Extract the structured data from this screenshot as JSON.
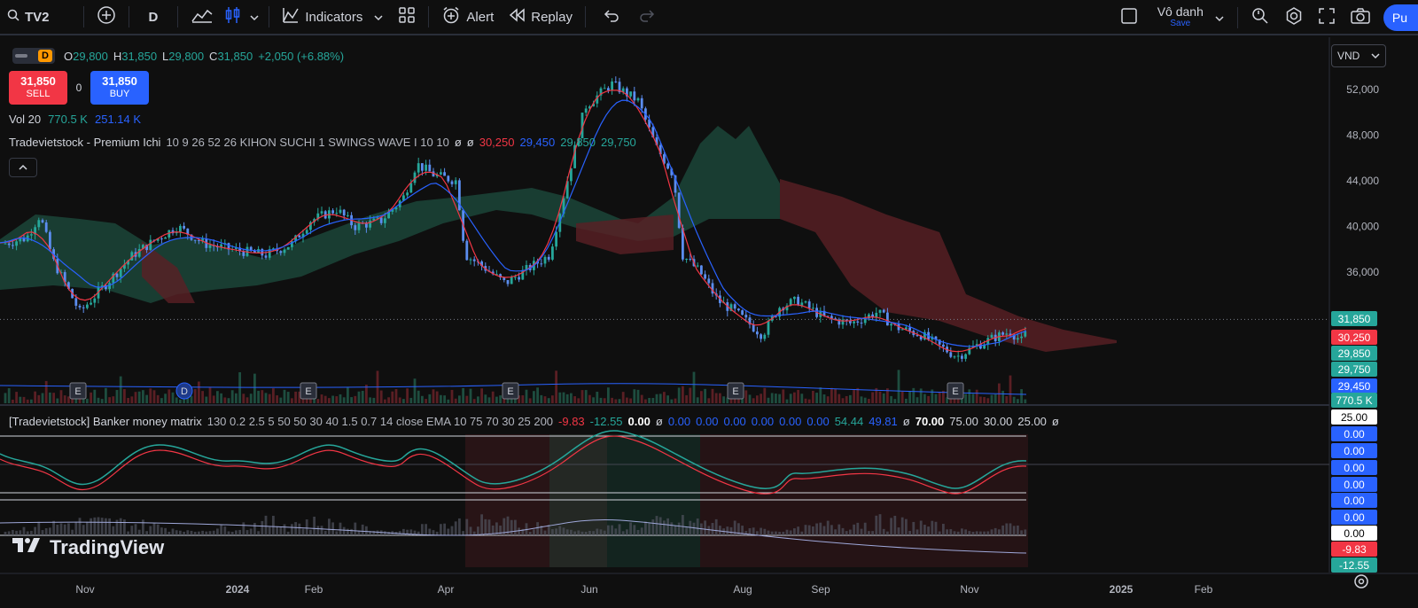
{
  "toolbar": {
    "symbol": "TV2",
    "interval": "D",
    "indicators_label": "Indicators",
    "alert_label": "Alert",
    "replay_label": "Replay",
    "user_name": "Vô danh",
    "save_label": "Save",
    "publish_label": "Pu"
  },
  "legend": {
    "interval_badge": "D",
    "o_label": "O",
    "o_value": "29,800",
    "h_label": "H",
    "h_value": "31,850",
    "l_label": "L",
    "l_value": "29,800",
    "c_label": "C",
    "c_value": "31,850",
    "change": "+2,050 (+6.88%)"
  },
  "trade": {
    "sell_price": "31,850",
    "sell_label": "SELL",
    "spread": "0",
    "buy_price": "31,850",
    "buy_label": "BUY"
  },
  "volume_legend": {
    "label": "Vol 20",
    "value1": "770.5 K",
    "value2": "251.14 K"
  },
  "ichimoku_legend": {
    "title": "Tradevietstock - Premium Ichi",
    "params": "10 9 26 52 26 KIHON SUCHI 1 SWINGS WAVE I 10 10",
    "n1": "ø",
    "n2": "ø",
    "v1": "30,250",
    "v2": "29,450",
    "v3": "29,850",
    "v4": "29,750",
    "c1": "#f23645",
    "c2": "#2962ff",
    "c3": "#26a69a",
    "c4": "#26a69a"
  },
  "banker_legend": {
    "title": "[Tradevietstock] Banker money matrix",
    "params": "130 0.2 2.5 5 50 50 30 40 1.5 0.7 14 close EMA 10 75 70 30 25 200",
    "values": [
      {
        "t": "-9.83",
        "c": "#f23645"
      },
      {
        "t": "-12.55",
        "c": "#26a69a"
      },
      {
        "t": "0.00",
        "c": "#ffffff"
      },
      {
        "t": "ø",
        "c": "#d1d4dc"
      },
      {
        "t": "0.00",
        "c": "#2962ff"
      },
      {
        "t": "0.00",
        "c": "#2962ff"
      },
      {
        "t": "0.00",
        "c": "#2962ff"
      },
      {
        "t": "0.00",
        "c": "#2962ff"
      },
      {
        "t": "0.00",
        "c": "#2962ff"
      },
      {
        "t": "0.00",
        "c": "#2962ff"
      },
      {
        "t": "54.44",
        "c": "#26a69a"
      },
      {
        "t": "49.81",
        "c": "#2962ff"
      },
      {
        "t": "ø",
        "c": "#d1d4dc"
      },
      {
        "t": "70.00",
        "c": "#ffffff"
      },
      {
        "t": "75.00",
        "c": "#d1d4dc"
      },
      {
        "t": "30.00",
        "c": "#d1d4dc"
      },
      {
        "t": "25.00",
        "c": "#d1d4dc"
      },
      {
        "t": "ø",
        "c": "#d1d4dc"
      }
    ]
  },
  "currency": "VND",
  "logo_text": "TradingView",
  "price_axis": {
    "ticks": [
      {
        "label": "52,000",
        "value": 52000
      },
      {
        "label": "48,000",
        "value": 48000
      },
      {
        "label": "44,000",
        "value": 44000
      },
      {
        "label": "40,000",
        "value": 40000
      },
      {
        "label": "36,000",
        "value": 36000
      }
    ],
    "tags": [
      {
        "label": "31,850",
        "color": "#26a69a",
        "value": 31850
      },
      {
        "label": "30,250",
        "color": "#f23645",
        "value": 30250
      },
      {
        "label": "29,850",
        "color": "#26a69a",
        "value": 29850
      },
      {
        "label": "29,750",
        "color": "#26a69a",
        "value": 29750
      },
      {
        "label": "29,450",
        "color": "#2962ff",
        "value": 29450
      },
      {
        "label": "770.5 K",
        "color": "#26a69a",
        "value": 28500
      }
    ]
  },
  "osc_axis": {
    "tags": [
      {
        "label": "25.00",
        "bg": "#ffffff",
        "fg": "#000000"
      },
      {
        "label": "0.00",
        "bg": "#2962ff",
        "fg": "#ffffff"
      },
      {
        "label": "0.00",
        "bg": "#2962ff",
        "fg": "#ffffff"
      },
      {
        "label": "0.00",
        "bg": "#2962ff",
        "fg": "#ffffff"
      },
      {
        "label": "0.00",
        "bg": "#2962ff",
        "fg": "#ffffff"
      },
      {
        "label": "0.00",
        "bg": "#2962ff",
        "fg": "#ffffff"
      },
      {
        "label": "0.00",
        "bg": "#2962ff",
        "fg": "#ffffff"
      },
      {
        "label": "0.00",
        "bg": "#ffffff",
        "fg": "#000000"
      },
      {
        "label": "-9.83",
        "bg": "#f23645",
        "fg": "#ffffff"
      },
      {
        "label": "-12.55",
        "bg": "#26a69a",
        "fg": "#ffffff"
      }
    ]
  },
  "time_axis": [
    "Nov",
    "2024",
    "Feb",
    "Apr",
    "Jun",
    "Aug",
    "Sep",
    "Nov",
    "2025",
    "Feb"
  ],
  "event_markers": [
    "E",
    "D",
    "E",
    "E",
    "E",
    "E"
  ],
  "colors": {
    "up": "#26a69a",
    "down": "#5b8def",
    "tenkan": "#f23645",
    "kijun": "#2962ff",
    "cloud_bull": "#1e4d3f",
    "cloud_bear": "#5a1f24"
  }
}
